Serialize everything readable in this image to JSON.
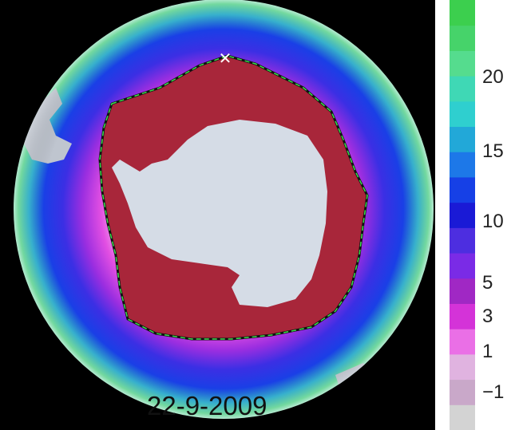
{
  "map": {
    "date": "22-9-2009",
    "marker_glyph": "✕",
    "ocean_colors": {
      "warm": "#5fe08a",
      "cyan": "#3fd8d2",
      "blue": "#1a2fe0",
      "violet": "#7a2be6",
      "magenta": "#e03fe3",
      "pink": "#f39ae9",
      "ice": "#a8263a",
      "land": "#d5dce6",
      "space": "#000000",
      "edge_line": "#39e04a"
    }
  },
  "colorbar": {
    "ticks": [
      {
        "label": "20",
        "value": 20
      },
      {
        "label": "15",
        "value": 15
      },
      {
        "label": "10",
        "value": 10
      },
      {
        "label": "5",
        "value": 5
      },
      {
        "label": "3",
        "value": 3
      },
      {
        "label": "1",
        "value": 1
      },
      {
        "label": "−1",
        "value": -1
      }
    ],
    "bands": [
      {
        "color": "#d3d3d3"
      },
      {
        "color": "#c9a8c9"
      },
      {
        "color": "#e0b3e0"
      },
      {
        "color": "#ea6fe6"
      },
      {
        "color": "#d433d8"
      },
      {
        "color": "#a028c4"
      },
      {
        "color": "#7a2be6"
      },
      {
        "color": "#4d2ee0"
      },
      {
        "color": "#1a1ad6"
      },
      {
        "color": "#1640e6"
      },
      {
        "color": "#1d78e8"
      },
      {
        "color": "#22a8d8"
      },
      {
        "color": "#2fcfcf"
      },
      {
        "color": "#3fd8b5"
      },
      {
        "color": "#55dc8e"
      },
      {
        "color": "#46d36a"
      },
      {
        "color": "#3ccf4e"
      }
    ]
  }
}
